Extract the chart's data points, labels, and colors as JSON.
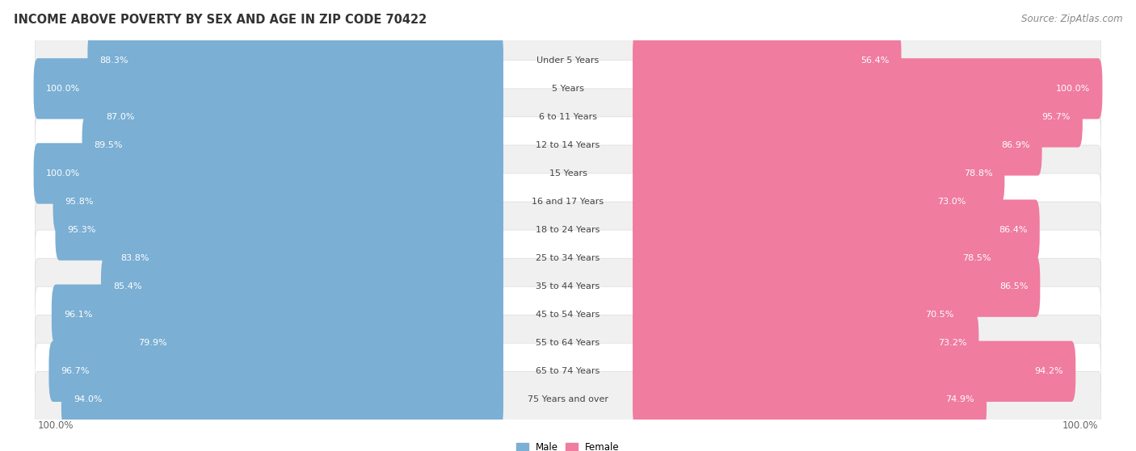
{
  "title": "INCOME ABOVE POVERTY BY SEX AND AGE IN ZIP CODE 70422",
  "source": "Source: ZipAtlas.com",
  "categories": [
    "Under 5 Years",
    "5 Years",
    "6 to 11 Years",
    "12 to 14 Years",
    "15 Years",
    "16 and 17 Years",
    "18 to 24 Years",
    "25 to 34 Years",
    "35 to 44 Years",
    "45 to 54 Years",
    "55 to 64 Years",
    "65 to 74 Years",
    "75 Years and over"
  ],
  "male_values": [
    88.3,
    100.0,
    87.0,
    89.5,
    100.0,
    95.8,
    95.3,
    83.8,
    85.4,
    96.1,
    79.9,
    96.7,
    94.0
  ],
  "female_values": [
    56.4,
    100.0,
    95.7,
    86.9,
    78.8,
    73.0,
    86.4,
    78.5,
    86.5,
    70.5,
    73.2,
    94.2,
    74.9
  ],
  "male_color": "#7bafd4",
  "female_color": "#f07ca0",
  "male_color_light": "#b8d4ea",
  "female_color_light": "#f9c0d2",
  "male_label": "Male",
  "female_label": "Female",
  "bg_color": "#ffffff",
  "row_bg_even": "#f0f0f0",
  "row_bg_odd": "#ffffff",
  "title_fontsize": 10.5,
  "source_fontsize": 8.5,
  "label_fontsize": 8.0,
  "tick_fontsize": 8.5,
  "cat_fontsize": 8.0
}
